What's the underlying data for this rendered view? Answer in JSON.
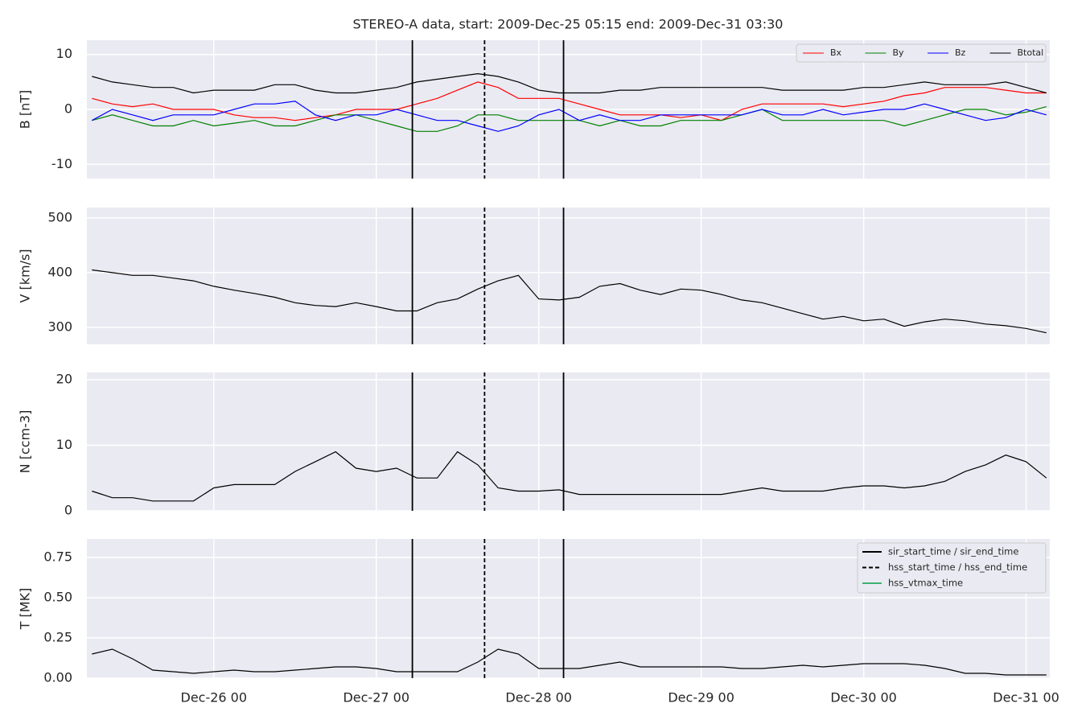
{
  "chart_data": {
    "type": "line",
    "title": "STEREO-A data, start: 2009-Dec-25 05:15  end: 2009-Dec-31 03:30",
    "x": [
      "2009-12-25T06:00",
      "2009-12-25T09:00",
      "2009-12-25T12:00",
      "2009-12-25T15:00",
      "2009-12-25T18:00",
      "2009-12-25T21:00",
      "2009-12-26T00:00",
      "2009-12-26T03:00",
      "2009-12-26T06:00",
      "2009-12-26T09:00",
      "2009-12-26T12:00",
      "2009-12-26T15:00",
      "2009-12-26T18:00",
      "2009-12-26T21:00",
      "2009-12-27T00:00",
      "2009-12-27T03:00",
      "2009-12-27T06:00",
      "2009-12-27T09:00",
      "2009-12-27T12:00",
      "2009-12-27T15:00",
      "2009-12-27T18:00",
      "2009-12-27T21:00",
      "2009-12-28T00:00",
      "2009-12-28T03:00",
      "2009-12-28T06:00",
      "2009-12-28T09:00",
      "2009-12-28T12:00",
      "2009-12-28T15:00",
      "2009-12-28T18:00",
      "2009-12-28T21:00",
      "2009-12-29T00:00",
      "2009-12-29T03:00",
      "2009-12-29T06:00",
      "2009-12-29T09:00",
      "2009-12-29T12:00",
      "2009-12-29T15:00",
      "2009-12-29T18:00",
      "2009-12-29T21:00",
      "2009-12-30T00:00",
      "2009-12-30T03:00",
      "2009-12-30T06:00",
      "2009-12-30T09:00",
      "2009-12-30T12:00",
      "2009-12-30T15:00",
      "2009-12-30T18:00",
      "2009-12-30T21:00",
      "2009-12-31T00:00",
      "2009-12-31T03:00"
    ],
    "xlim": [
      "2009-12-25T05:15",
      "2009-12-31T03:30"
    ],
    "xticks": [
      {
        "value": "2009-12-26T00:00",
        "label": "Dec-26 00"
      },
      {
        "value": "2009-12-27T00:00",
        "label": "Dec-27 00"
      },
      {
        "value": "2009-12-28T00:00",
        "label": "Dec-28 00"
      },
      {
        "value": "2009-12-29T00:00",
        "label": "Dec-29 00"
      },
      {
        "value": "2009-12-30T00:00",
        "label": "Dec-30 00"
      },
      {
        "value": "2009-12-31T00:00",
        "label": "Dec-31 00"
      }
    ],
    "grid": true,
    "events": [
      {
        "name": "sir_start_time / sir_end_time",
        "color": "#000000",
        "style": "solid",
        "times": [
          "2009-12-27T05:20",
          "2009-12-28T03:40"
        ]
      },
      {
        "name": "hss_start_time / hss_end_time",
        "color": "#000000",
        "style": "dashed",
        "times": [
          "2009-12-27T16:00"
        ]
      },
      {
        "name": "hss_vtmax_time",
        "color": "#3cb371",
        "style": "solid",
        "times": []
      }
    ],
    "panels": [
      {
        "ylabel": "B [nT]",
        "ylim": [
          -12.6,
          12.6
        ],
        "yticks": [
          -10,
          0,
          10
        ],
        "legend": "upper right",
        "series": [
          {
            "name": "Bx",
            "color": "#ff0000",
            "values": [
              2,
              1,
              0.5,
              1,
              0,
              0,
              0,
              -1,
              -1.5,
              -1.5,
              -2,
              -1.5,
              -1,
              0,
              0,
              0,
              1,
              2,
              3.5,
              5,
              4,
              2,
              2,
              2,
              1,
              0,
              -1,
              -1,
              -1,
              -1.5,
              -1,
              -2,
              0,
              1,
              1,
              1,
              1,
              0.5,
              1,
              1.5,
              2.5,
              3,
              4,
              4,
              4,
              3.5,
              3,
              3
            ]
          },
          {
            "name": "By",
            "color": "#008000",
            "values": [
              -2,
              -1,
              -2,
              -3,
              -3,
              -2,
              -3,
              -2.5,
              -2,
              -3,
              -3,
              -2,
              -1,
              -1,
              -2,
              -3,
              -4,
              -4,
              -3,
              -1,
              -1,
              -2,
              -2,
              -2,
              -2,
              -3,
              -2,
              -3,
              -3,
              -2,
              -2,
              -2,
              -1,
              0,
              -2,
              -2,
              -2,
              -2,
              -2,
              -2,
              -3,
              -2,
              -1,
              0,
              0,
              -1,
              -0.5,
              0.5
            ]
          },
          {
            "name": "Bz",
            "color": "#0000ff",
            "values": [
              -2,
              0,
              -1,
              -2,
              -1,
              -1,
              -1,
              0,
              1,
              1,
              1.5,
              -1,
              -2,
              -1,
              -1,
              0,
              -1,
              -2,
              -2,
              -3,
              -4,
              -3,
              -1,
              0,
              -2,
              -1,
              -2,
              -2,
              -1,
              -1,
              -1,
              -1,
              -1,
              0,
              -1,
              -1,
              0,
              -1,
              -0.5,
              0,
              0,
              1,
              0,
              -1,
              -2,
              -1.5,
              0,
              -1
            ]
          },
          {
            "name": "Btotal",
            "color": "#000000",
            "values": [
              6,
              5,
              4.5,
              4,
              4,
              3,
              3.5,
              3.5,
              3.5,
              4.5,
              4.5,
              3.5,
              3,
              3,
              3.5,
              4,
              5,
              5.5,
              6,
              6.5,
              6,
              5,
              3.5,
              3,
              3,
              3,
              3.5,
              3.5,
              4,
              4,
              4,
              4,
              4,
              4,
              3.5,
              3.5,
              3.5,
              3.5,
              4,
              4,
              4.5,
              5,
              4.5,
              4.5,
              4.5,
              5,
              4,
              3
            ]
          }
        ]
      },
      {
        "ylabel": "V [km/s]",
        "ylim": [
          269,
          519
        ],
        "yticks": [
          300,
          400,
          500
        ],
        "series": [
          {
            "name": "V",
            "color": "#000000",
            "values": [
              405,
              400,
              395,
              395,
              390,
              385,
              375,
              368,
              362,
              355,
              345,
              340,
              338,
              345,
              338,
              330,
              330,
              345,
              352,
              370,
              385,
              395,
              352,
              350,
              355,
              375,
              380,
              368,
              360,
              370,
              368,
              360,
              350,
              345,
              335,
              325,
              315,
              320,
              312,
              315,
              302,
              310,
              315,
              312,
              306,
              303,
              298,
              290
            ]
          }
        ]
      },
      {
        "ylabel": "N [ccm-3]",
        "ylim": [
          0,
          21.1
        ],
        "yticks": [
          0,
          10,
          20
        ],
        "series": [
          {
            "name": "N",
            "color": "#000000",
            "values": [
              3,
              2,
              2,
              1.5,
              1.5,
              1.5,
              3.5,
              4,
              4,
              4,
              6,
              7.5,
              9,
              6.5,
              6,
              6.5,
              5,
              5,
              9,
              7,
              3.5,
              3,
              3,
              3.2,
              2.5,
              2.5,
              2.5,
              2.5,
              2.5,
              2.5,
              2.5,
              2.5,
              3,
              3.5,
              3,
              3,
              3,
              3.5,
              3.8,
              3.8,
              3.5,
              3.8,
              4.5,
              6,
              7,
              8.5,
              7.5,
              5
            ]
          }
        ]
      },
      {
        "ylabel": "T [MK]",
        "ylim": [
          0,
          0.865
        ],
        "yticks": [
          {
            "value": 0,
            "label": "0.00"
          },
          0.25,
          {
            "value": 0.5,
            "label": "0.50"
          },
          0.75
        ],
        "events_legend": "upper right",
        "series": [
          {
            "name": "T",
            "color": "#000000",
            "values": [
              0.15,
              0.18,
              0.12,
              0.05,
              0.04,
              0.03,
              0.04,
              0.05,
              0.04,
              0.04,
              0.05,
              0.06,
              0.07,
              0.07,
              0.06,
              0.04,
              0.04,
              0.04,
              0.04,
              0.1,
              0.18,
              0.15,
              0.06,
              0.06,
              0.06,
              0.08,
              0.1,
              0.07,
              0.07,
              0.07,
              0.07,
              0.07,
              0.06,
              0.06,
              0.07,
              0.08,
              0.07,
              0.08,
              0.09,
              0.09,
              0.09,
              0.08,
              0.06,
              0.03,
              0.03,
              0.02,
              0.02,
              0.02
            ]
          }
        ]
      }
    ]
  }
}
